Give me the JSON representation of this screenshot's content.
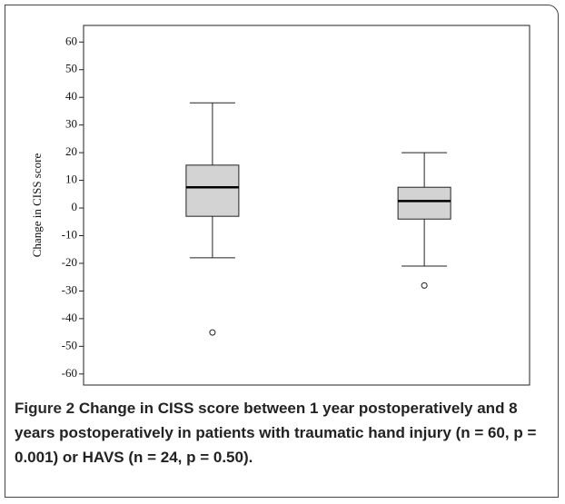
{
  "chart_data": {
    "type": "box",
    "ylabel": "Change in CISS score",
    "categories": [
      "Traumatic hand injury (n=60)",
      "HAVS (n=24)"
    ],
    "color": "#d3d3d3",
    "boxes": [
      {
        "min": -18,
        "q1": -3,
        "median": 7.5,
        "q3": 15.5,
        "max": 38,
        "outliers": [
          -45
        ]
      },
      {
        "min": -21,
        "q1": -4,
        "median": 2.5,
        "q3": 7.5,
        "max": 20,
        "outliers": [
          -28
        ]
      }
    ],
    "ylim": [
      -64,
      66
    ],
    "yticks": [
      60,
      50,
      40,
      30,
      20,
      10,
      0,
      -10,
      -20,
      -30,
      -40,
      -50,
      -60
    ],
    "caption_label": "Figure 2",
    "caption": "Change in CISS score between 1 year postoperatively and 8 years postoperatively in patients with traumatic hand injury (n = 60, p = 0.001) or HAVS (n = 24, p = 0.50)."
  }
}
